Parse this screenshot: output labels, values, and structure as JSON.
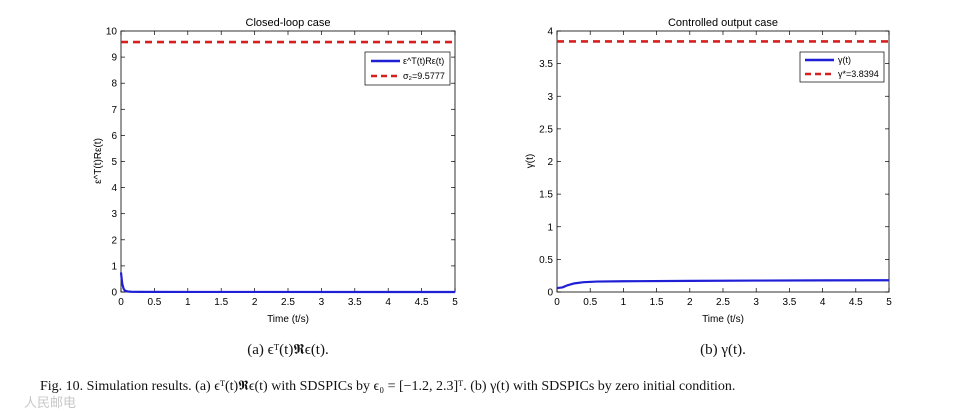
{
  "chart_data": [
    {
      "type": "line",
      "title": "Closed-loop case",
      "xlabel": "Time (t/s)",
      "ylabel": "ε^T(t)Rε(t)",
      "xlim": [
        0,
        5
      ],
      "ylim": [
        0,
        10
      ],
      "xticks": [
        0,
        0.5,
        1,
        1.5,
        2,
        2.5,
        3,
        3.5,
        4,
        4.5,
        5
      ],
      "xtick_labels": [
        "0",
        "0.5",
        "1",
        "1.5",
        "2",
        "2.5",
        "3",
        "3.5",
        "4",
        "4.5",
        "5"
      ],
      "yticks": [
        0,
        1,
        2,
        3,
        4,
        5,
        6,
        7,
        8,
        9,
        10
      ],
      "ytick_labels": [
        "0",
        "1",
        "2",
        "3",
        "4",
        "5",
        "6",
        "7",
        "8",
        "9",
        "10"
      ],
      "legend_position": "top-right",
      "series": [
        {
          "name": "ε^T(t)Rε(t)",
          "style": "solid",
          "color": "#1f1fd6",
          "x": [
            0,
            0.01,
            0.02,
            0.04,
            0.06,
            0.1,
            0.15,
            0.3,
            1,
            5
          ],
          "y": [
            0.75,
            0.5,
            0.3,
            0.12,
            0.05,
            0.02,
            0.01,
            0.005,
            0.002,
            0.001
          ]
        },
        {
          "name": "σ₂=9.5777",
          "style": "dashed",
          "color": "#d62020",
          "x": [
            0,
            5
          ],
          "y": [
            9.5777,
            9.5777
          ]
        }
      ],
      "caption": "(a)  ϵᵀ(t)𝕽ϵ(t)."
    },
    {
      "type": "line",
      "title": "Controlled output case",
      "xlabel": "Time (t/s)",
      "ylabel": "γ(t)",
      "xlim": [
        0,
        5
      ],
      "ylim": [
        0,
        4
      ],
      "xticks": [
        0,
        0.5,
        1,
        1.5,
        2,
        2.5,
        3,
        3.5,
        4,
        4.5,
        5
      ],
      "xtick_labels": [
        "0",
        "0.5",
        "1",
        "1.5",
        "2",
        "2.5",
        "3",
        "3.5",
        "4",
        "4.5",
        "5"
      ],
      "yticks": [
        0,
        0.5,
        1,
        1.5,
        2,
        2.5,
        3,
        3.5,
        4
      ],
      "ytick_labels": [
        "0",
        "0.5",
        "1",
        "1.5",
        "2",
        "2.5",
        "3",
        "3.5",
        "4"
      ],
      "legend_position": "top-right",
      "series": [
        {
          "name": "γ(t)",
          "style": "solid",
          "color": "#1f1fd6",
          "x": [
            0,
            0.08,
            0.15,
            0.25,
            0.4,
            0.6,
            1,
            2,
            3,
            4,
            5
          ],
          "y": [
            0.06,
            0.07,
            0.1,
            0.13,
            0.15,
            0.16,
            0.165,
            0.17,
            0.175,
            0.178,
            0.18
          ]
        },
        {
          "name": "γ*=3.8394",
          "style": "dashed",
          "color": "#d62020",
          "x": [
            0,
            5
          ],
          "y": [
            3.8394,
            3.8394
          ]
        }
      ],
      "caption": "(b)  γ(t)."
    }
  ],
  "figure_caption": "Fig. 10.  Simulation results. (a) ϵᵀ(t)𝕽ϵ(t) with SDSPICs by ϵ₀ = [−1.2, 2.3]ᵀ. (b) γ(t) with SDSPICs by zero initial condition.",
  "watermark": "人民邮电"
}
